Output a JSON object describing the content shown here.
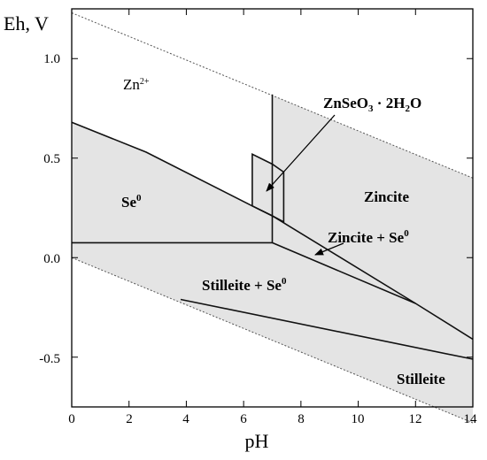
{
  "colors": {
    "shade": "#e4e4e4",
    "line": "#111111",
    "water": "#555555"
  },
  "axes": {
    "x_title": "pH",
    "y_title": "Eh, V",
    "x_ticks": [
      "0",
      "2",
      "4",
      "6",
      "8",
      "10",
      "12",
      "14"
    ],
    "y_ticks": [
      "1.0",
      "0.5",
      "0.0",
      "-0.5"
    ]
  },
  "labels": {
    "zn2": "Zn",
    "zn2_charge": "2+",
    "se0_main": "Se",
    "se0_sup": "0",
    "znseo3_a": "ZnSeO",
    "znseo3_sub3": "3",
    "znseo3_b": " · 2H",
    "znseo3_sub2": "2",
    "znseo3_c": "O",
    "zincite": "Zincite",
    "zincite_se_main": "Zincite + Se",
    "zincite_se_sup": "0",
    "stilleite_se_main": "Stilleite + Se",
    "stilleite_se_sup": "0",
    "stilleite": "Stilleite"
  },
  "chart_data": {
    "type": "phase-diagram",
    "xlabel": "pH",
    "ylabel": "Eh, V",
    "xlim": [
      0,
      14
    ],
    "ylim": [
      -0.75,
      1.25
    ],
    "water_stability_lines": [
      {
        "points": [
          [
            0,
            1.23
          ],
          [
            14,
            0.4
          ]
        ]
      },
      {
        "points": [
          [
            0,
            0.0
          ],
          [
            14,
            -0.83
          ]
        ]
      }
    ],
    "boundaries": [
      {
        "points": [
          [
            0,
            0.68
          ],
          [
            2.6,
            0.53
          ],
          [
            6.3,
            0.26
          ],
          [
            7.0,
            0.21
          ],
          [
            12.0,
            -0.23
          ],
          [
            14.0,
            -0.41
          ]
        ]
      },
      {
        "points": [
          [
            0,
            0.075
          ],
          [
            7.0,
            0.075
          ]
        ]
      },
      {
        "points": [
          [
            7.0,
            0.075
          ],
          [
            12.0,
            -0.23
          ]
        ]
      },
      {
        "points": [
          [
            7.0,
            0.075
          ],
          [
            7.0,
            0.82
          ]
        ]
      },
      {
        "points": [
          [
            3.8,
            -0.21
          ],
          [
            14.0,
            -0.51
          ]
        ]
      }
    ],
    "znseo3_field": [
      [
        6.3,
        0.26
      ],
      [
        6.3,
        0.52
      ],
      [
        7.0,
        0.47
      ],
      [
        7.4,
        0.43
      ],
      [
        7.4,
        0.18
      ],
      [
        7.0,
        0.21
      ]
    ],
    "regions": [
      {
        "name": "Zn2+",
        "x": 2.5,
        "y": 0.87
      },
      {
        "name": "Se0",
        "x": 2.6,
        "y": 0.28
      },
      {
        "name": "ZnSeO3 · 2H2O",
        "x": 10.0,
        "y": 0.77
      },
      {
        "name": "Zincite",
        "x": 10.5,
        "y": 0.32
      },
      {
        "name": "Zincite + Se0",
        "x": 11.1,
        "y": 0.11
      },
      {
        "name": "Stilleite + Se0",
        "x": 6.6,
        "y": -0.13
      },
      {
        "name": "Stilleite",
        "x": 12.2,
        "y": -0.62
      }
    ]
  }
}
